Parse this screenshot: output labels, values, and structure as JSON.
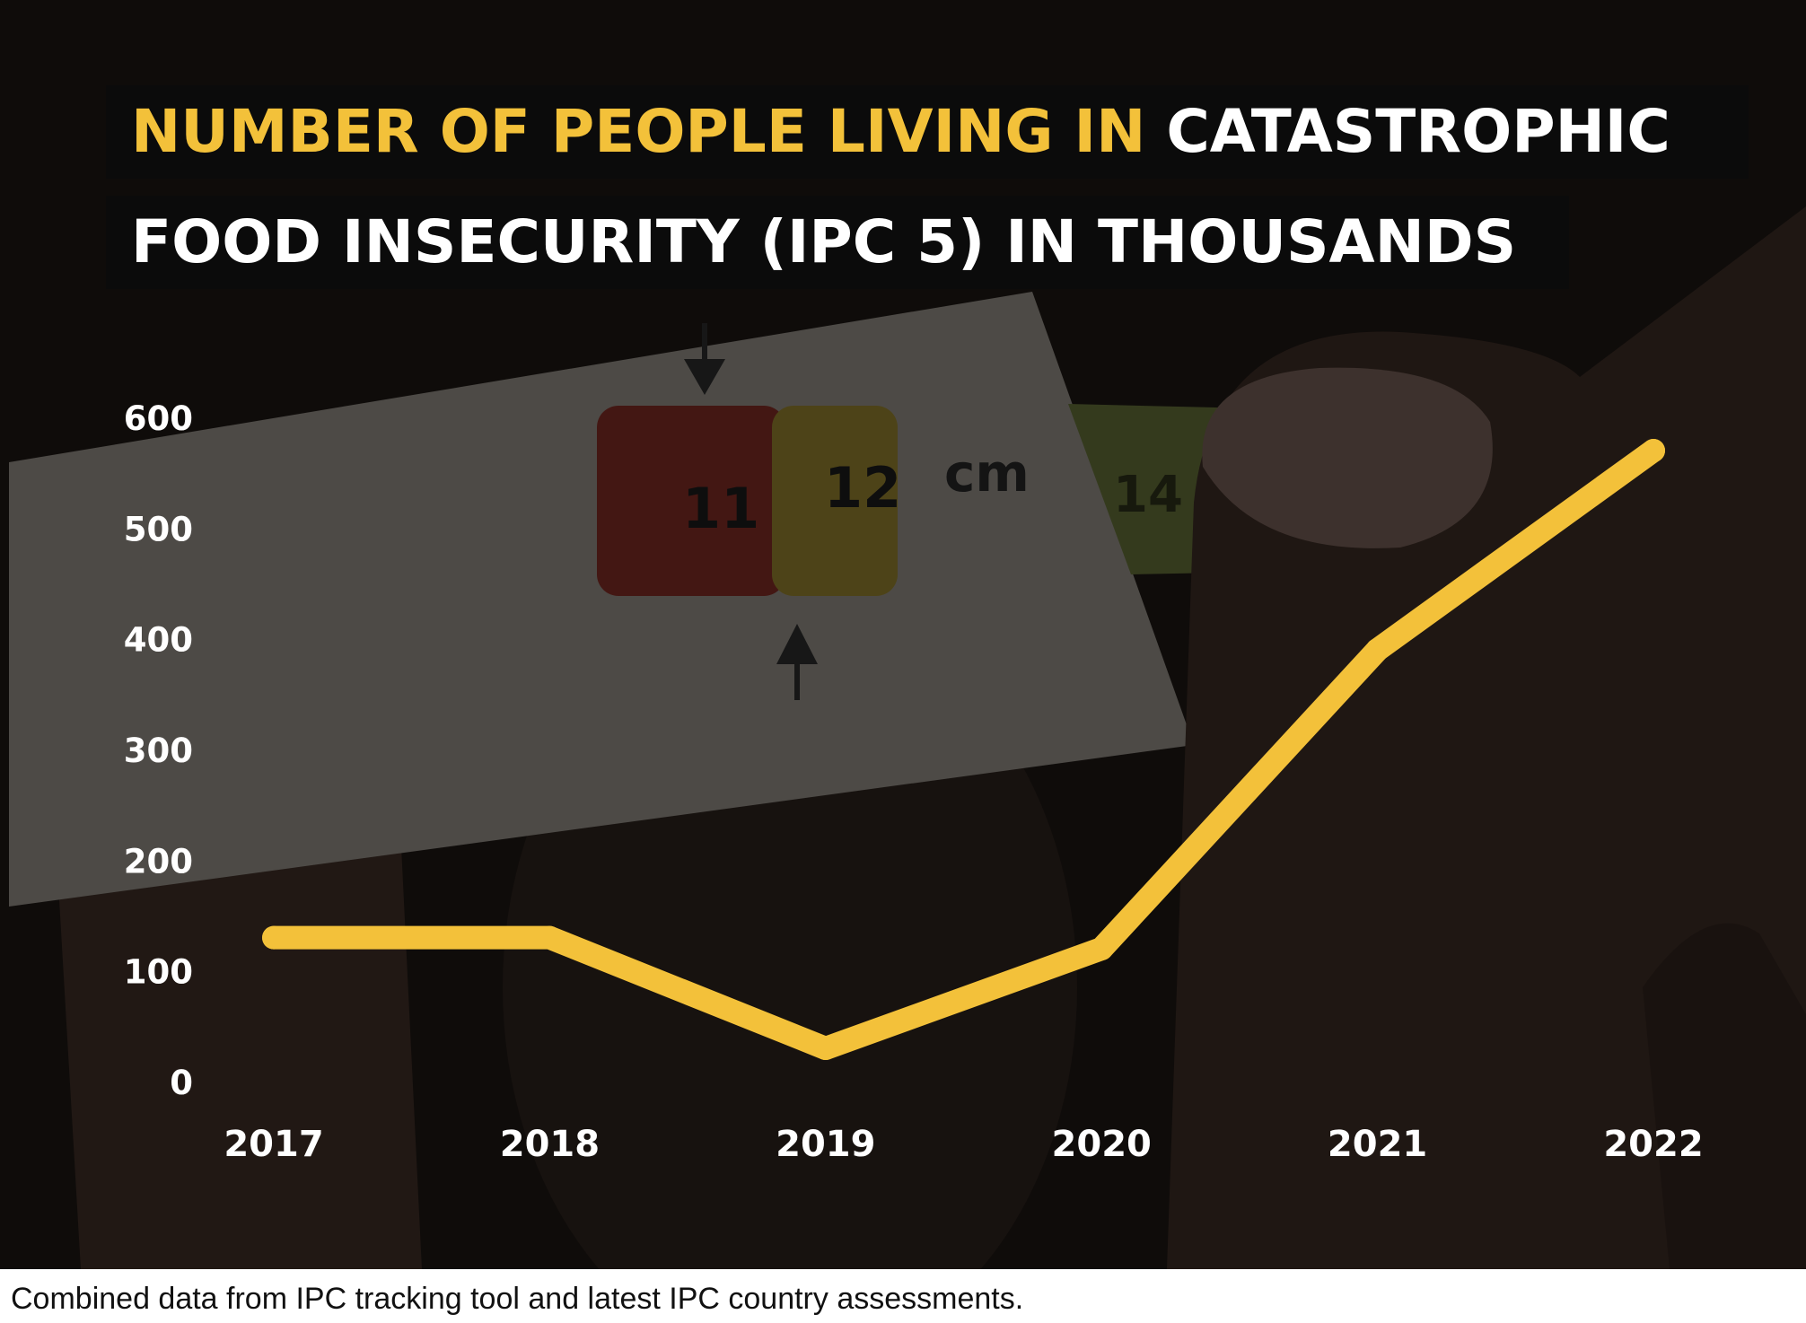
{
  "title": {
    "line1_highlight": "NUMBER OF PEOPLE LIVING IN",
    "line1_rest": "CATASTROPHIC",
    "line2": "FOOD INSECURITY (IPC 5) IN THOUSANDS"
  },
  "caption": "Combined data from IPC tracking tool and latest IPC country assessments.",
  "colors": {
    "line": "#f3c13a",
    "title_highlight": "#f3c13a",
    "title_text": "#ffffff",
    "title_background": "#0b0b0b"
  },
  "background_icons": [
    "muac-tape-measure",
    "fingers"
  ],
  "photo_text": {
    "tape_left": "11",
    "tape_right": "12",
    "unit": "cm",
    "tape_far": "14"
  },
  "chart_data": {
    "type": "line",
    "title": "NUMBER OF PEOPLE LIVING IN CATASTROPHIC FOOD INSECURITY (IPC 5) IN THOUSANDS",
    "xlabel": "",
    "ylabel": "",
    "categories": [
      "2017",
      "2018",
      "2019",
      "2020",
      "2021",
      "2022"
    ],
    "series": [
      {
        "values": [
          130,
          130,
          30,
          120,
          390,
          570
        ]
      }
    ],
    "ylim": [
      0,
      600
    ],
    "yticks": [
      "0",
      "100",
      "200",
      "300",
      "400",
      "500",
      "600"
    ],
    "grid": false,
    "legend": "none"
  }
}
